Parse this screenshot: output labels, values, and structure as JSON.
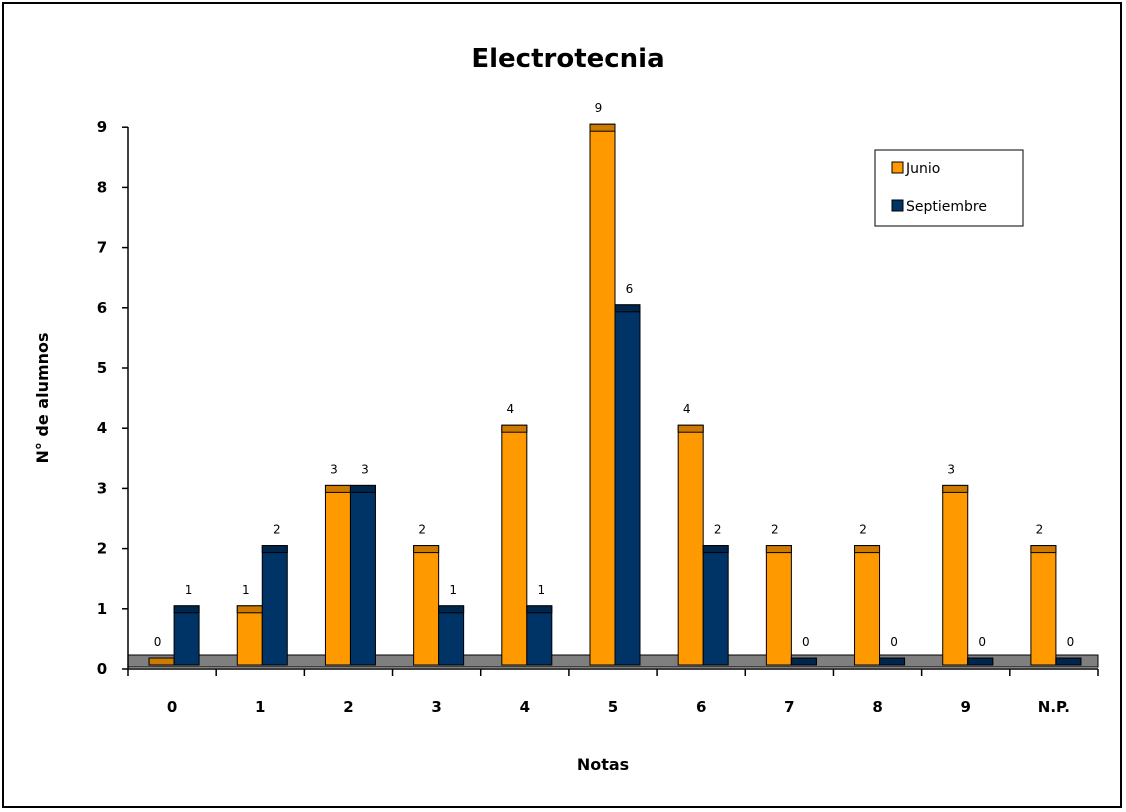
{
  "chart_data": {
    "type": "bar",
    "title": "Electrotecnia",
    "xlabel": "Notas",
    "ylabel": "N° de alumnos",
    "categories": [
      "0",
      "1",
      "2",
      "3",
      "4",
      "5",
      "6",
      "7",
      "8",
      "9",
      "N.P."
    ],
    "series": [
      {
        "name": "Junio",
        "values": [
          0,
          1,
          3,
          2,
          4,
          9,
          4,
          2,
          2,
          3,
          2
        ],
        "color": "#FF9900"
      },
      {
        "name": "Septiembre",
        "values": [
          1,
          2,
          3,
          1,
          1,
          6,
          2,
          0,
          0,
          0,
          0
        ],
        "color": "#003366"
      }
    ],
    "yticks": [
      "0",
      "1",
      "2",
      "3",
      "4",
      "5",
      "6",
      "7",
      "8",
      "9"
    ],
    "ylim": [
      0,
      9
    ],
    "legend_position": "top-right",
    "grid": false,
    "data_labels": true
  }
}
